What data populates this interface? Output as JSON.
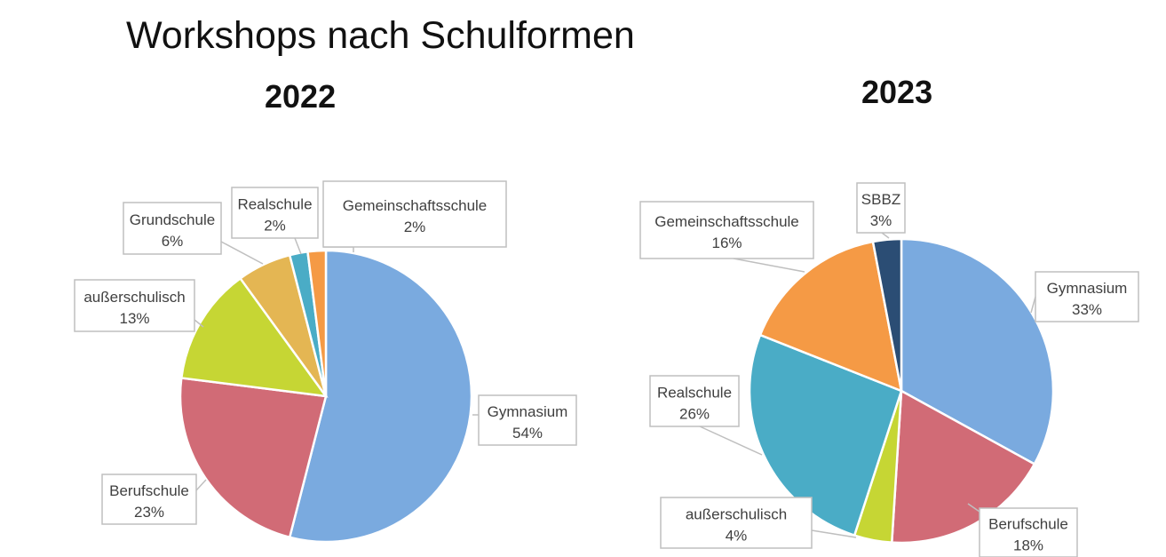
{
  "title": "Workshops nach Schulformen",
  "chart_data": [
    {
      "type": "pie",
      "title": "2022",
      "slices": [
        {
          "label": "Gymnasium",
          "value": 54,
          "value_label": "54%",
          "color": "#7aaadf"
        },
        {
          "label": "Berufschule",
          "value": 23,
          "value_label": "23%",
          "color": "#d16b76"
        },
        {
          "label": "außerschulisch",
          "value": 13,
          "value_label": "13%",
          "color": "#c6d634"
        },
        {
          "label": "Grundschule",
          "value": 6,
          "value_label": "6%",
          "color": "#e4b653"
        },
        {
          "label": "Realschule",
          "value": 2,
          "value_label": "2%",
          "color": "#4aacc6"
        },
        {
          "label": "Gemeinschaftsschule",
          "value": 2,
          "value_label": "2%",
          "color": "#f59a45"
        }
      ]
    },
    {
      "type": "pie",
      "title": "2023",
      "slices": [
        {
          "label": "Gymnasium",
          "value": 33,
          "value_label": "33%",
          "color": "#7aaadf"
        },
        {
          "label": "Berufschule",
          "value": 18,
          "value_label": "18%",
          "color": "#d16b76"
        },
        {
          "label": "außerschulisch",
          "value": 4,
          "value_label": "4%",
          "color": "#c6d634"
        },
        {
          "label": "Realschule",
          "value": 26,
          "value_label": "26%",
          "color": "#4aacc6"
        },
        {
          "label": "Gemeinschaftsschule",
          "value": 16,
          "value_label": "16%",
          "color": "#f59a45"
        },
        {
          "label": "SBBZ",
          "value": 3,
          "value_label": "3%",
          "color": "#2b4d74"
        }
      ]
    }
  ]
}
